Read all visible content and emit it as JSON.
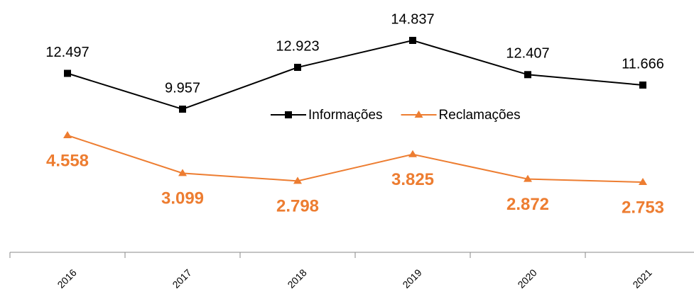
{
  "chart_data": {
    "type": "line",
    "categories": [
      "2016",
      "2017",
      "2018",
      "2019",
      "2020",
      "2021"
    ],
    "series": [
      {
        "name": "Informações",
        "color": "#000000",
        "marker": "square",
        "values": [
          12497,
          9957,
          12923,
          14837,
          12407,
          11666
        ],
        "value_labels": [
          "12.497",
          "9.957",
          "12.923",
          "14.837",
          "12.407",
          "11.666"
        ]
      },
      {
        "name": "Reclamações",
        "color": "#ed7d31",
        "marker": "triangle",
        "axis": "y2",
        "values": [
          4558,
          3099,
          2798,
          3825,
          2872,
          2753
        ],
        "value_labels": [
          "4.558",
          "3.099",
          "2.798",
          "3.825",
          "2.872",
          "2.753"
        ]
      }
    ],
    "legend": "center"
  }
}
